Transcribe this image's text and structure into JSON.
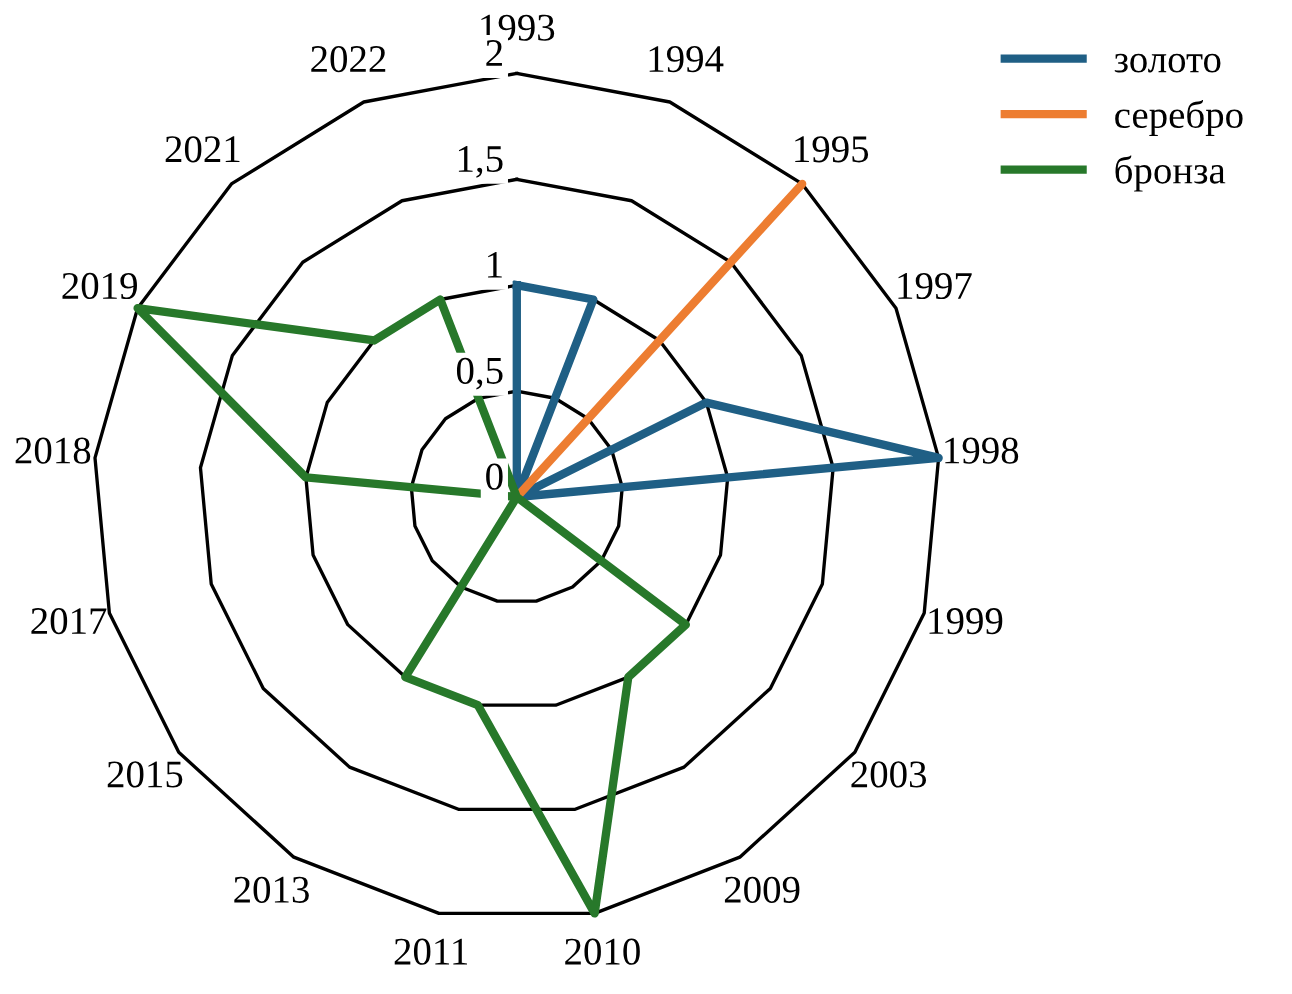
{
  "chart_data": {
    "type": "radar",
    "categories": [
      "1993",
      "1994",
      "1995",
      "1997",
      "1998",
      "1999",
      "2003",
      "2009",
      "2010",
      "2011",
      "2013",
      "2015",
      "2017",
      "2018",
      "2019",
      "2021",
      "2022"
    ],
    "series": [
      {
        "name": "золото",
        "color": "#1f5f85",
        "values": [
          1,
          1,
          0,
          1,
          2,
          0,
          0,
          0,
          0,
          0,
          0,
          0,
          0,
          0,
          0,
          0,
          0
        ]
      },
      {
        "name": "серебро",
        "color": "#ed7d31",
        "values": [
          0,
          0,
          2,
          0,
          0,
          0,
          0,
          0,
          0,
          0,
          0,
          0,
          0,
          0,
          0,
          0,
          0
        ]
      },
      {
        "name": "бронза",
        "color": "#27782a",
        "values": [
          0,
          0,
          0,
          0,
          0,
          0,
          1,
          1,
          2,
          1,
          1,
          0,
          0,
          1,
          2,
          1,
          1
        ]
      }
    ],
    "ylim": [
      0,
      2
    ],
    "yticks": [
      0,
      {
        "value": 0.5,
        "label": "0,5"
      },
      1,
      {
        "value": 1.5,
        "label": "1,5"
      },
      2
    ],
    "legend": "top right",
    "grid": true,
    "marker": "none"
  }
}
